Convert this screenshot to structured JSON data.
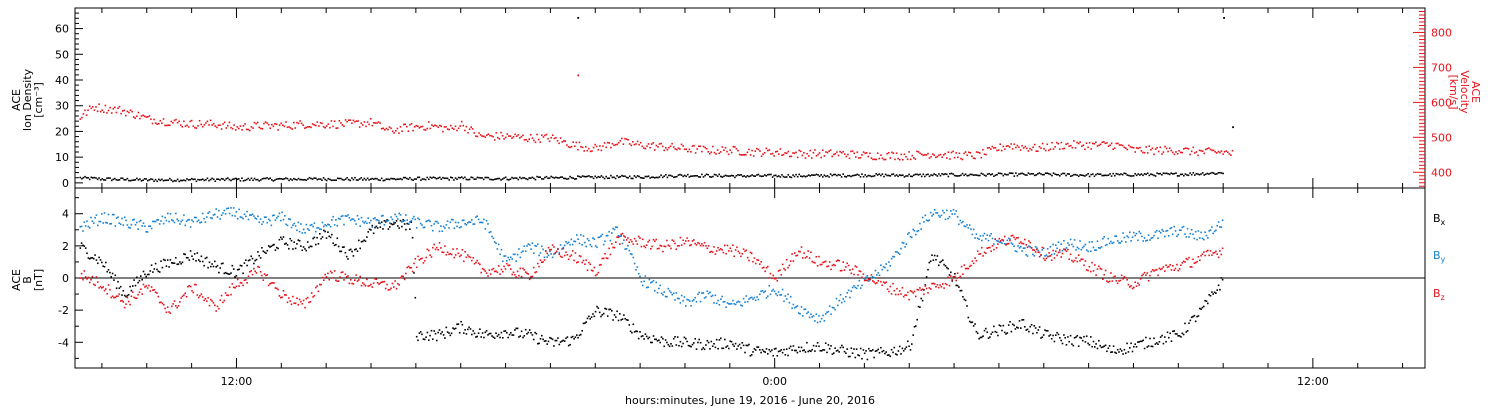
{
  "colors": {
    "density": "#000000",
    "velocity": "#e8141c",
    "bx": "#000000",
    "by": "#1a82d2",
    "bz": "#e8141c"
  },
  "xlabel": "hours:minutes, June 19, 2016 - June 20, 2016",
  "x_tick_labels": [
    {
      "hour": 12,
      "label": "12:00"
    },
    {
      "hour": 24,
      "label": "0:00"
    },
    {
      "hour": 36,
      "label": "12:00"
    }
  ],
  "chart_data": [
    {
      "type": "scatter",
      "panel": "plasma",
      "ylabel_lines": [
        "ACE",
        "Ion Density",
        "[cm⁻³]"
      ],
      "ylabel_right_lines": [
        "ACE",
        "Velocity",
        "[km/s]"
      ],
      "x_units": "hours since June 19, 2016 00:00",
      "xlim": [
        8.4,
        38.5
      ],
      "ylim_left": [
        -2,
        68
      ],
      "ylim_right": [
        355,
        870
      ],
      "y_ticks_left": [
        0,
        10,
        20,
        30,
        40,
        50,
        60
      ],
      "y_ticks_right": [
        400,
        500,
        600,
        700,
        800
      ],
      "series": [
        {
          "axis": "left",
          "color": "black",
          "points": [
            [
              8.5,
              2.2
            ],
            [
              9,
              1.8
            ],
            [
              10,
              1.4
            ],
            [
              11,
              1.5
            ],
            [
              12,
              1.6
            ],
            [
              13,
              1.7
            ],
            [
              14,
              1.8
            ],
            [
              15,
              1.7
            ],
            [
              16,
              1.9
            ],
            [
              17,
              2
            ],
            [
              18,
              2
            ],
            [
              19,
              2.2
            ],
            [
              20,
              2.5
            ],
            [
              21,
              2.6
            ],
            [
              22,
              3.2
            ],
            [
              23,
              3
            ],
            [
              24,
              3
            ],
            [
              25,
              3.1
            ],
            [
              26,
              3.3
            ],
            [
              27,
              3.2
            ],
            [
              28,
              3.4
            ],
            [
              29,
              3.5
            ],
            [
              30,
              3.6
            ],
            [
              31,
              3.3
            ],
            [
              32,
              3.5
            ],
            [
              33,
              3.6
            ],
            [
              34,
              4.2
            ]
          ],
          "outliers": [
            [
              19.6,
              64.5
            ],
            [
              34.2,
              22
            ],
            [
              34,
              64.5
            ]
          ]
        },
        {
          "axis": "right",
          "color": "red",
          "points": [
            [
              8.5,
              560
            ],
            [
              8.8,
              590
            ],
            [
              9,
              585
            ],
            [
              9.4,
              580
            ],
            [
              9.8,
              565
            ],
            [
              10,
              555
            ],
            [
              10.6,
              545
            ],
            [
              11,
              540
            ],
            [
              11.5,
              540
            ],
            [
              12,
              530
            ],
            [
              12.5,
              535
            ],
            [
              13,
              535
            ],
            [
              13.5,
              540
            ],
            [
              14,
              540
            ],
            [
              14.5,
              540
            ],
            [
              15,
              545
            ],
            [
              15.4,
              520
            ],
            [
              15.8,
              530
            ],
            [
              16.3,
              535
            ],
            [
              16.8,
              525
            ],
            [
              17,
              540
            ],
            [
              17.4,
              505
            ],
            [
              18,
              505
            ],
            [
              18.5,
              500
            ],
            [
              19,
              500
            ],
            [
              19.5,
              480
            ],
            [
              20,
              470
            ],
            [
              20.5,
              490
            ],
            [
              21,
              480
            ],
            [
              21.5,
              475
            ],
            [
              22,
              470
            ],
            [
              22.5,
              465
            ],
            [
              23,
              465
            ],
            [
              23.5,
              460
            ],
            [
              24,
              460
            ],
            [
              24.5,
              455
            ],
            [
              25,
              455
            ],
            [
              25.5,
              455
            ],
            [
              26,
              450
            ],
            [
              26.5,
              450
            ],
            [
              27,
              450
            ],
            [
              27.5,
              455
            ],
            [
              28,
              450
            ],
            [
              28.5,
              450
            ],
            [
              29.2,
              480
            ],
            [
              29.8,
              470
            ],
            [
              30.4,
              480
            ],
            [
              31,
              480
            ],
            [
              31.6,
              480
            ],
            [
              32,
              465
            ],
            [
              32.5,
              465
            ],
            [
              33,
              465
            ],
            [
              33.5,
              460
            ],
            [
              34,
              460
            ],
            [
              34.2,
              455
            ]
          ],
          "outliers": [
            [
              19.6,
              680
            ]
          ]
        }
      ]
    },
    {
      "type": "scatter",
      "panel": "magnetic",
      "ylabel_lines": [
        "ACE",
        "B",
        "[nT]"
      ],
      "x_units": "hours since June 19, 2016 00:00",
      "xlim": [
        8.4,
        38.5
      ],
      "ylim": [
        -5.6,
        5.6
      ],
      "y_ticks": [
        -4,
        -2,
        0,
        2,
        4
      ],
      "zero_line": true,
      "legend": [
        "Bx",
        "By",
        "Bz"
      ],
      "series": [
        {
          "name": "Bx",
          "color": "black",
          "points": [
            [
              8.5,
              2
            ],
            [
              9,
              1
            ],
            [
              9.5,
              -1
            ],
            [
              10,
              0.5
            ],
            [
              10.5,
              1
            ],
            [
              11,
              1.5
            ],
            [
              11.5,
              0.8
            ],
            [
              12,
              0.4
            ],
            [
              12.5,
              1.5
            ],
            [
              13,
              2.3
            ],
            [
              13.5,
              2
            ],
            [
              14,
              2.8
            ],
            [
              14.5,
              1.5
            ],
            [
              15,
              3
            ],
            [
              15.5,
              3.5
            ],
            [
              15.9,
              3.2
            ],
            [
              16,
              -3.5
            ],
            [
              16.5,
              -3.5
            ],
            [
              17,
              -3
            ],
            [
              17.5,
              -3.5
            ],
            [
              18,
              -3.3
            ],
            [
              18.5,
              -3.5
            ],
            [
              19,
              -4
            ],
            [
              19.5,
              -3.8
            ],
            [
              20,
              -2
            ],
            [
              20.5,
              -2.3
            ],
            [
              21,
              -3.5
            ],
            [
              21.5,
              -3.9
            ],
            [
              22,
              -4
            ],
            [
              22.5,
              -4.1
            ],
            [
              23,
              -4
            ],
            [
              23.5,
              -4.5
            ],
            [
              24,
              -4.6
            ],
            [
              24.5,
              -4.3
            ],
            [
              25,
              -4.2
            ],
            [
              25.5,
              -4.5
            ],
            [
              26,
              -4.7
            ],
            [
              26.5,
              -4.6
            ],
            [
              27,
              -4.2
            ],
            [
              27.5,
              1.5
            ],
            [
              28,
              0
            ],
            [
              28.5,
              -3.5
            ],
            [
              29,
              -3.2
            ],
            [
              29.5,
              -2.8
            ],
            [
              30,
              -3.5
            ],
            [
              30.5,
              -3.8
            ],
            [
              31,
              -3.9
            ],
            [
              31.5,
              -4.5
            ],
            [
              32,
              -4.2
            ],
            [
              32.5,
              -3.8
            ],
            [
              33,
              -3.5
            ],
            [
              33.5,
              -2
            ],
            [
              34,
              0
            ]
          ]
        },
        {
          "name": "By",
          "color": "blue",
          "points": [
            [
              8.5,
              3.2
            ],
            [
              9,
              3.8
            ],
            [
              9.5,
              3.5
            ],
            [
              10,
              3.2
            ],
            [
              10.5,
              3.8
            ],
            [
              11,
              3.5
            ],
            [
              11.5,
              4
            ],
            [
              12,
              4.1
            ],
            [
              12.5,
              3.5
            ],
            [
              13,
              3.8
            ],
            [
              13.5,
              3
            ],
            [
              14,
              3.5
            ],
            [
              14.5,
              3.7
            ],
            [
              15,
              3.5
            ],
            [
              15.5,
              3.8
            ],
            [
              16,
              3.5
            ],
            [
              16.5,
              3.2
            ],
            [
              17,
              3.5
            ],
            [
              17.5,
              3.6
            ],
            [
              18,
              1
            ],
            [
              18.5,
              2
            ],
            [
              19,
              1.5
            ],
            [
              19.5,
              2.5
            ],
            [
              20,
              2.2
            ],
            [
              20.5,
              3
            ],
            [
              21,
              0
            ],
            [
              21.5,
              -0.8
            ],
            [
              22,
              -1.5
            ],
            [
              22.5,
              -1
            ],
            [
              23,
              -1.7
            ],
            [
              23.5,
              -1.2
            ],
            [
              24,
              -0.6
            ],
            [
              24.5,
              -1.8
            ],
            [
              25,
              -2.5
            ],
            [
              25.5,
              -1.2
            ],
            [
              26,
              -0.2
            ],
            [
              26.5,
              0.8
            ],
            [
              27,
              2.7
            ],
            [
              27.5,
              4.1
            ],
            [
              28,
              4
            ],
            [
              28.5,
              2.5
            ],
            [
              29,
              2.5
            ],
            [
              29.5,
              1.8
            ],
            [
              30,
              1.6
            ],
            [
              30.5,
              2.2
            ],
            [
              31,
              2
            ],
            [
              31.5,
              2.4
            ],
            [
              32,
              2.6
            ],
            [
              32.5,
              2.7
            ],
            [
              33,
              3
            ],
            [
              33.5,
              2.6
            ],
            [
              34,
              3.5
            ]
          ]
        },
        {
          "name": "Bz",
          "color": "red",
          "points": [
            [
              8.5,
              0.3
            ],
            [
              9,
              -0.4
            ],
            [
              9.5,
              -1.5
            ],
            [
              10,
              -0.5
            ],
            [
              10.5,
              -2
            ],
            [
              11,
              -0.5
            ],
            [
              11.5,
              -1.8
            ],
            [
              12,
              -0.3
            ],
            [
              12.5,
              0.5
            ],
            [
              13,
              -1
            ],
            [
              13.5,
              -1.7
            ],
            [
              14,
              0.3
            ],
            [
              14.5,
              0
            ],
            [
              15,
              -0.3
            ],
            [
              15.5,
              -0.5
            ],
            [
              16,
              1
            ],
            [
              16.5,
              2
            ],
            [
              17,
              1.5
            ],
            [
              17.5,
              0.5
            ],
            [
              18,
              0.6
            ],
            [
              18.5,
              0.2
            ],
            [
              19,
              1.8
            ],
            [
              19.5,
              1.4
            ],
            [
              20,
              0.5
            ],
            [
              20.5,
              2.5
            ],
            [
              21,
              2.3
            ],
            [
              21.5,
              2
            ],
            [
              22,
              2.3
            ],
            [
              22.5,
              1.9
            ],
            [
              23,
              1.8
            ],
            [
              23.5,
              1.3
            ],
            [
              24,
              0
            ],
            [
              24.5,
              1.8
            ],
            [
              25,
              1
            ],
            [
              25.5,
              0.8
            ],
            [
              26,
              0.2
            ],
            [
              26.5,
              -0.5
            ],
            [
              27,
              -1
            ],
            [
              27.5,
              -0.5
            ],
            [
              28,
              0
            ],
            [
              28.5,
              1.5
            ],
            [
              29,
              2.3
            ],
            [
              29.5,
              2.5
            ],
            [
              30,
              1.5
            ],
            [
              30.5,
              1.5
            ],
            [
              31,
              0.8
            ],
            [
              31.5,
              0
            ],
            [
              32,
              -0.3
            ],
            [
              32.5,
              0.5
            ],
            [
              33,
              0.8
            ],
            [
              33.5,
              1.3
            ],
            [
              34,
              1.8
            ]
          ]
        }
      ]
    }
  ]
}
